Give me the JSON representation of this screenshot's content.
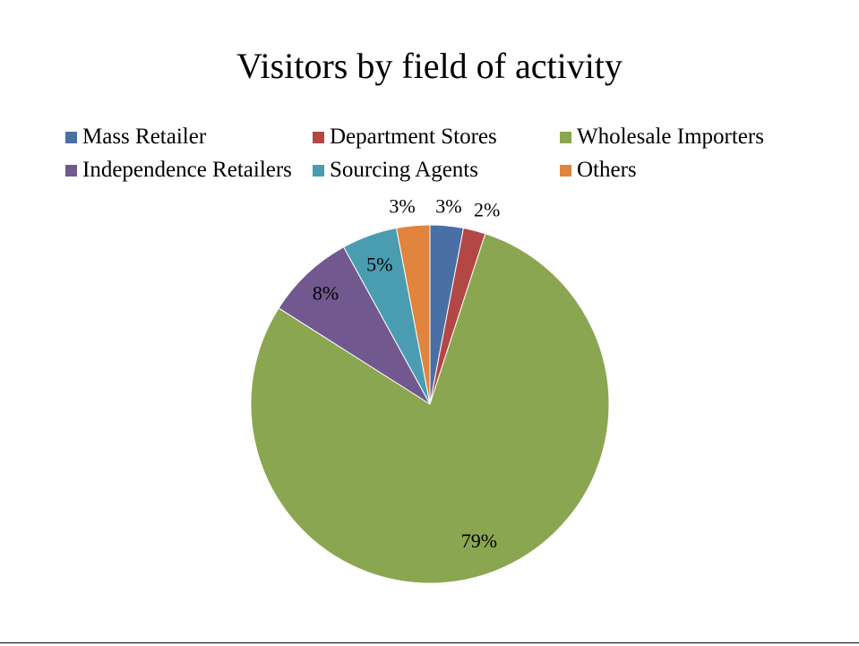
{
  "chart_data": {
    "type": "pie",
    "title": "Visitors by field of activity",
    "categories": [
      "Mass Retailer",
      "Department Stores",
      "Wholesale Importers",
      "Independence Retailers",
      "Sourcing Agents",
      "Others"
    ],
    "values": [
      3,
      2,
      79,
      8,
      5,
      3
    ],
    "labels": [
      "3%",
      "2%",
      "79%",
      "8%",
      "5%",
      "3%"
    ],
    "colors": [
      "#4A6FA5",
      "#B24745",
      "#8BA650",
      "#71588F",
      "#4A9DB0",
      "#E0843E"
    ],
    "legend_position": "top"
  }
}
